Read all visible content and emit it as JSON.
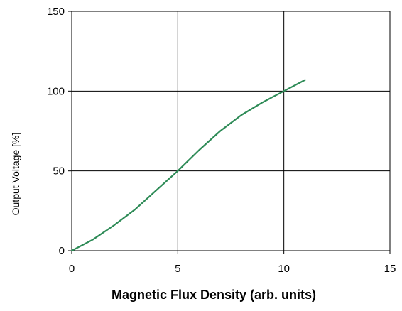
{
  "chart_data": {
    "type": "line",
    "title": "",
    "xlabel": "Magnetic Flux Density (arb. units)",
    "ylabel": "Output Voltage [%]",
    "xlim": [
      0,
      15
    ],
    "ylim": [
      0,
      150
    ],
    "x_ticks": [
      0,
      5,
      10,
      15
    ],
    "y_ticks": [
      0,
      50,
      100,
      150
    ],
    "x_tick_labels": [
      "0",
      "5",
      "10",
      "15"
    ],
    "y_tick_labels": [
      "0",
      "50",
      "100",
      "150"
    ],
    "grid": true,
    "legend": "none",
    "series": [
      {
        "color": "#2e8b57",
        "x": [
          0,
          1,
          2,
          3,
          4,
          5,
          6,
          7,
          8,
          9,
          10,
          11
        ],
        "y": [
          0,
          7,
          16,
          26,
          38,
          50,
          63,
          75,
          85,
          93,
          100,
          107
        ]
      }
    ]
  }
}
